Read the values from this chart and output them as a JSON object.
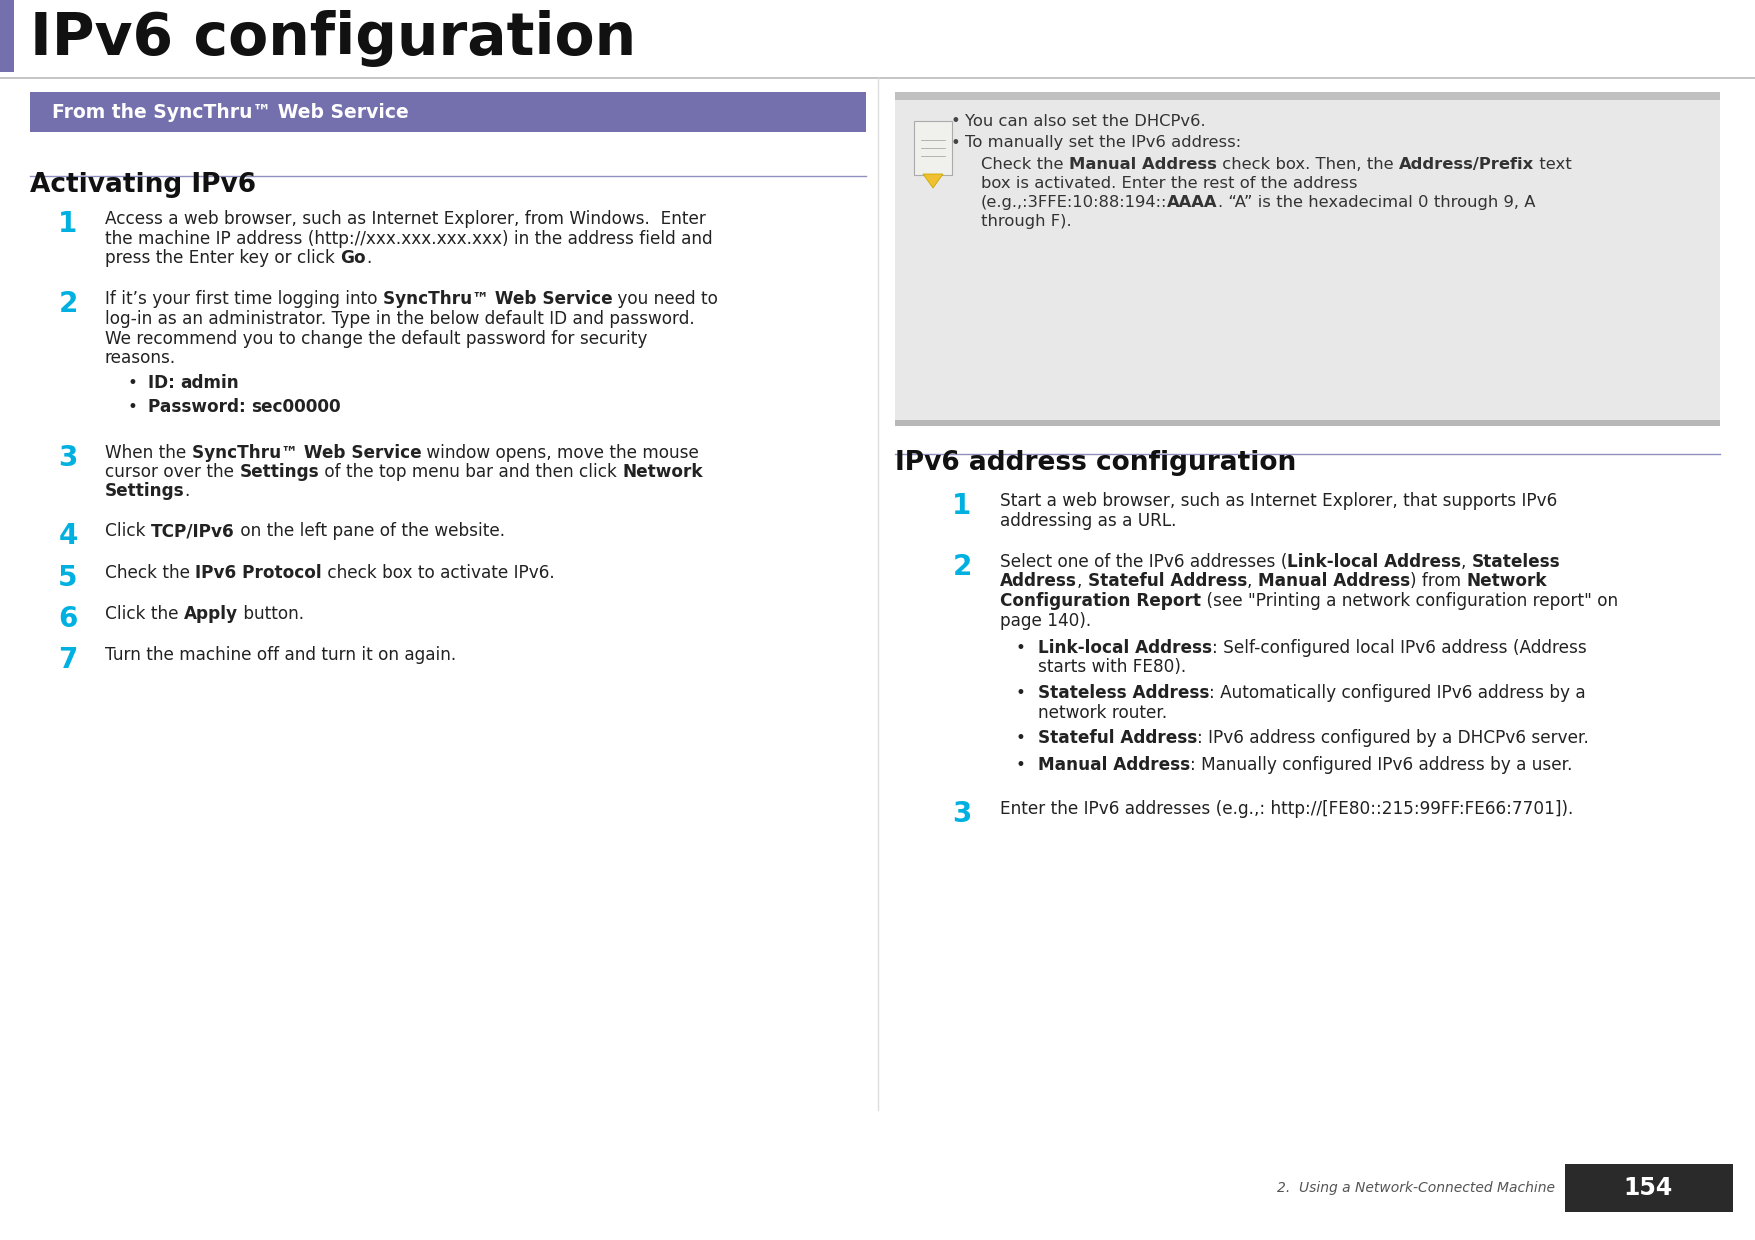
{
  "page_title": "IPv6 configuration",
  "page_number": "154",
  "section_label": "2.  Using a Network-Connected Machine",
  "header_bar_color": "#7470ae",
  "header_bar_text": "From the SyncThru™ Web Service",
  "header_bar_text_color": "#ffffff",
  "left_section_title": "Activating IPv6",
  "right_section_title": "IPv6 address configuration",
  "step_number_color": "#00b0e0",
  "bg_color": "#ffffff",
  "title_bar_left_color": "#7470ae",
  "divider_color": "#9090c0",
  "note_box_bg_top": "#d0d0d0",
  "note_box_bg_mid": "#e8e8e8",
  "note_box_bg_bot": "#c8c8c8"
}
